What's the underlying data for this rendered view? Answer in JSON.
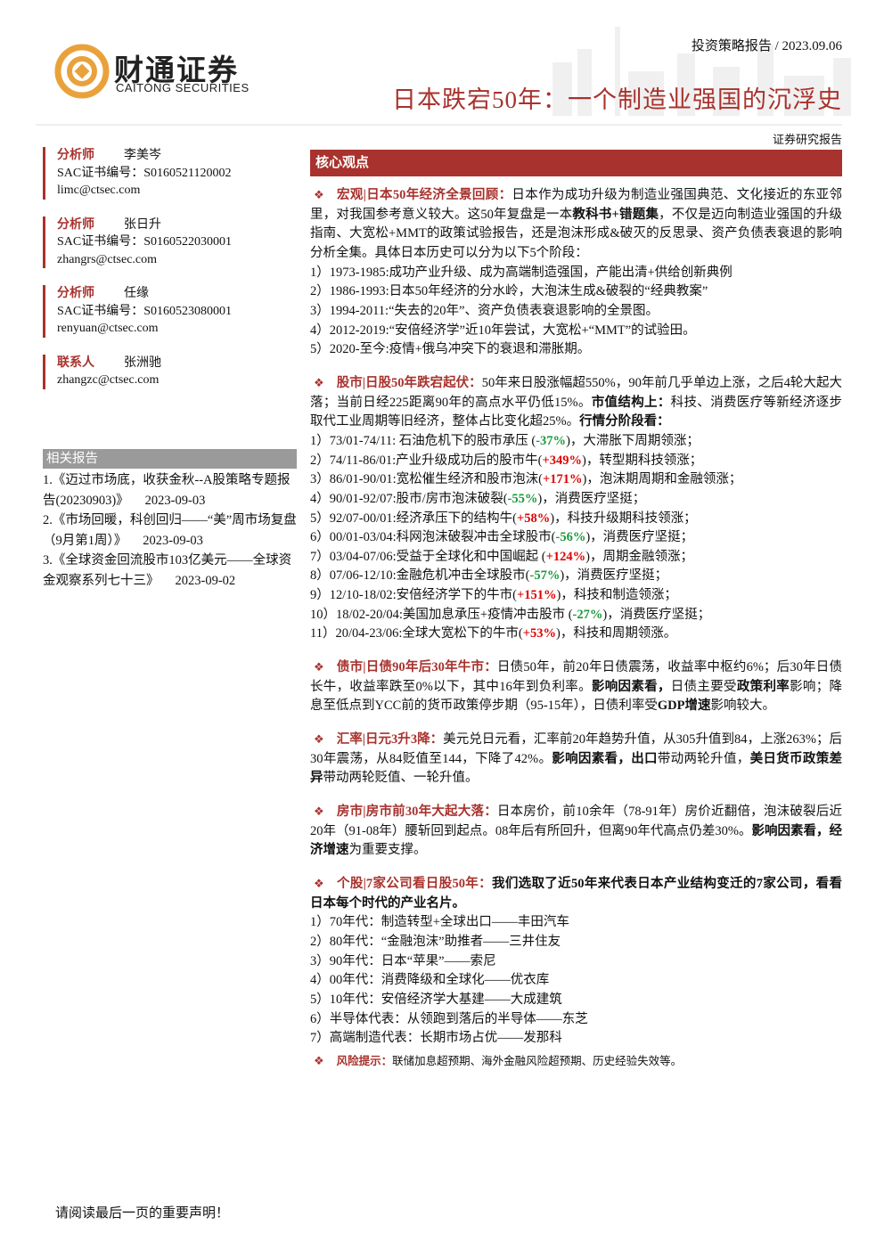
{
  "header": {
    "logo_cn": "财通证券",
    "logo_en": "CAITONG SECURITIES",
    "report_type": "投资策略报告 / 2023.09.06",
    "title": "日本跌宕50年：一个制造业强国的沉浮史",
    "label": "证券研究报告"
  },
  "analysts": [
    {
      "role": "分析师",
      "name": "李美岑",
      "cert": "SAC证书编号：S0160521120002",
      "email": "limc@ctsec.com"
    },
    {
      "role": "分析师",
      "name": "张日升",
      "cert": "SAC证书编号：S0160522030001",
      "email": "zhangrs@ctsec.com"
    },
    {
      "role": "分析师",
      "name": "任缘",
      "cert": "SAC证书编号：S0160523080001",
      "email": "renyuan@ctsec.com"
    },
    {
      "role": "联系人",
      "name": "张洲驰",
      "email": "zhangzc@ctsec.com"
    }
  ],
  "related": {
    "title": "相关报告",
    "items": [
      {
        "title": "1.《迈过市场底，收获金秋--A股策略专题报告(20230903)》",
        "date": "2023-09-03"
      },
      {
        "title": "2.《市场回暖，科创回归——“美”周市场复盘（9月第1周）》",
        "date": "2023-09-03"
      },
      {
        "title": "3.《全球资金回流股市103亿美元——全球资金观察系列七十三》",
        "date": "2023-09-02"
      }
    ]
  },
  "core": {
    "title": "核心观点",
    "sections": [
      {
        "paragraph": [
          {
            "text": "宏观|日本50年经济全景回顾：",
            "style": "heading"
          },
          {
            "text": "日本作为成功升级为制造业强国典范、文化接近的东亚邻里，对我国参考意义较大。这50年复盘是一本"
          },
          {
            "text": "教科书+错题集",
            "style": "bold"
          },
          {
            "text": "，不仅是迈向制造业强国的升级指南、大宽松+MMT的政策试验报告，还是泡沫形成&破灭的反思录、资产负债表衰退的影响分析全集。具体日本历史可以分为以下5个阶段："
          }
        ],
        "items": [
          [
            {
              "text": "1）1973-1985:成功产业升级、成为高端制造强国，产能出清+供给创新典例"
            }
          ],
          [
            {
              "text": "2）1986-1993:日本50年经济的分水岭，大泡沫生成&破裂的“经典教案”"
            }
          ],
          [
            {
              "text": "3）1994-2011:“失去的20年”、资产负债表衰退影响的全景图。"
            }
          ],
          [
            {
              "text": "4）2012-2019:“安倍经济学”近10年尝试，大宽松+“MMT”的试验田。"
            }
          ],
          [
            {
              "text": "5）2020-至今:疫情+俄乌冲突下的衰退和滞胀期。"
            }
          ]
        ]
      },
      {
        "paragraph": [
          {
            "text": "股市|日股50年跌宕起伏：",
            "style": "heading"
          },
          {
            "text": "50年来日股涨幅超550%，90年前几乎单边上涨，之后4轮大起大落；当前日经225距离90年的高点水平仍低15%。"
          },
          {
            "text": "市值结构上：",
            "style": "bold"
          },
          {
            "text": "科技、消费医疗等新经济逐步取代工业周期等旧经济，整体占比变化超25%。"
          },
          {
            "text": "行情分阶段看：",
            "style": "bold"
          }
        ],
        "items": [
          [
            {
              "text": "1）73/01-74/11: 石油危机下的股市承压 ("
            },
            {
              "text": "-37%",
              "style": "green"
            },
            {
              "text": ")，大滞胀下周期领涨；"
            }
          ],
          [
            {
              "text": "2）74/11-86/01:产业升级成功后的股市牛("
            },
            {
              "text": "+349%",
              "style": "red"
            },
            {
              "text": ")，转型期科技领涨；"
            }
          ],
          [
            {
              "text": "3）86/01-90/01:宽松催生经济和股市泡沫("
            },
            {
              "text": "+171%",
              "style": "red"
            },
            {
              "text": ")，泡沫期周期和金融领涨；"
            }
          ],
          [
            {
              "text": "4）90/01-92/07:股市/房市泡沫破裂("
            },
            {
              "text": "-55%",
              "style": "green"
            },
            {
              "text": ")，消费医疗坚挺；"
            }
          ],
          [
            {
              "text": "5）92/07-00/01:经济承压下的结构牛("
            },
            {
              "text": "+58%",
              "style": "red"
            },
            {
              "text": ")，科技升级期科技领涨；"
            }
          ],
          [
            {
              "text": "6）00/01-03/04:科网泡沫破裂冲击全球股市("
            },
            {
              "text": "-56%",
              "style": "green"
            },
            {
              "text": ")，消费医疗坚挺；"
            }
          ],
          [
            {
              "text": "7）03/04-07/06:受益于全球化和中国崛起 ("
            },
            {
              "text": "+124%",
              "style": "red"
            },
            {
              "text": ")，周期金融领涨；"
            }
          ],
          [
            {
              "text": "8）07/06-12/10:金融危机冲击全球股市("
            },
            {
              "text": "-57%",
              "style": "green"
            },
            {
              "text": ")，消费医疗坚挺；"
            }
          ],
          [
            {
              "text": "9）12/10-18/02:安倍经济学下的牛市("
            },
            {
              "text": "+151%",
              "style": "red"
            },
            {
              "text": ")，科技和制造领涨；"
            }
          ],
          [
            {
              "text": "10）18/02-20/04:美国加息承压+疫情冲击股市 ("
            },
            {
              "text": "-27%",
              "style": "green"
            },
            {
              "text": ")，消费医疗坚挺；"
            }
          ],
          [
            {
              "text": "11）20/04-23/06:全球大宽松下的牛市("
            },
            {
              "text": "+53%",
              "style": "red"
            },
            {
              "text": ")，科技和周期领涨。"
            }
          ]
        ]
      },
      {
        "paragraph": [
          {
            "text": "债市|日债90年后30年牛市：",
            "style": "heading"
          },
          {
            "text": "日债50年，前20年日债震荡，收益率中枢约6%；后30年日债长牛，收益率跌至0%以下，其中16年到负利率。"
          },
          {
            "text": "影响因素看，",
            "style": "bold"
          },
          {
            "text": "日债主要受"
          },
          {
            "text": "政策利率",
            "style": "bold"
          },
          {
            "text": "影响；降息至低点到YCC前的货币政策停步期（95-15年），日债利率受"
          },
          {
            "text": "GDP增速",
            "style": "bold"
          },
          {
            "text": "影响较大。"
          }
        ]
      },
      {
        "paragraph": [
          {
            "text": "汇率|日元3升3降：",
            "style": "heading"
          },
          {
            "text": "美元兑日元看，汇率前20年趋势升值，从305升值到84，上涨263%；后30年震荡，从84贬值至144，下降了42%。"
          },
          {
            "text": "影响因素看，出口",
            "style": "bold"
          },
          {
            "text": "带动两轮升值，"
          },
          {
            "text": "美日货币政策差异",
            "style": "bold"
          },
          {
            "text": "带动两轮贬值、一轮升值。"
          }
        ]
      },
      {
        "paragraph": [
          {
            "text": "房市|房市前30年大起大落：",
            "style": "heading"
          },
          {
            "text": "日本房价，前10余年（78-91年）房价近翻倍，泡沫破裂后近20年（91-08年）腰斩回到起点。08年后有所回升，但离90年代高点仍差30%。"
          },
          {
            "text": "影响因素看，经济增速",
            "style": "bold"
          },
          {
            "text": "为重要支撑。"
          }
        ]
      },
      {
        "paragraph": [
          {
            "text": "个股|7家公司看日股50年：",
            "style": "heading"
          },
          {
            "text": "我们选取了近50年来代表日本产业结构变迁的7家公司，看看日本每个时代的产业名片。",
            "style": "bold"
          }
        ],
        "items": [
          [
            {
              "text": "1）70年代：制造转型+全球出口——丰田汽车"
            }
          ],
          [
            {
              "text": "2）80年代：“金融泡沫”助推者——三井住友"
            }
          ],
          [
            {
              "text": "3）90年代：日本“苹果”——索尼"
            }
          ],
          [
            {
              "text": "4）00年代：消费降级和全球化——优衣库"
            }
          ],
          [
            {
              "text": "5）10年代：安倍经济学大基建——大成建筑"
            }
          ],
          [
            {
              "text": "6）半导体代表：从领跑到落后的半导体——东芝"
            }
          ],
          [
            {
              "text": "7）高端制造代表：长期市场占优——发那科"
            }
          ]
        ]
      }
    ],
    "risk": [
      {
        "text": "风险提示：",
        "style": "heading"
      },
      {
        "text": "联储加息超预期、海外金融风险超预期、历史经验失效等。"
      }
    ]
  },
  "footer": "请阅读最后一页的重要声明！"
}
